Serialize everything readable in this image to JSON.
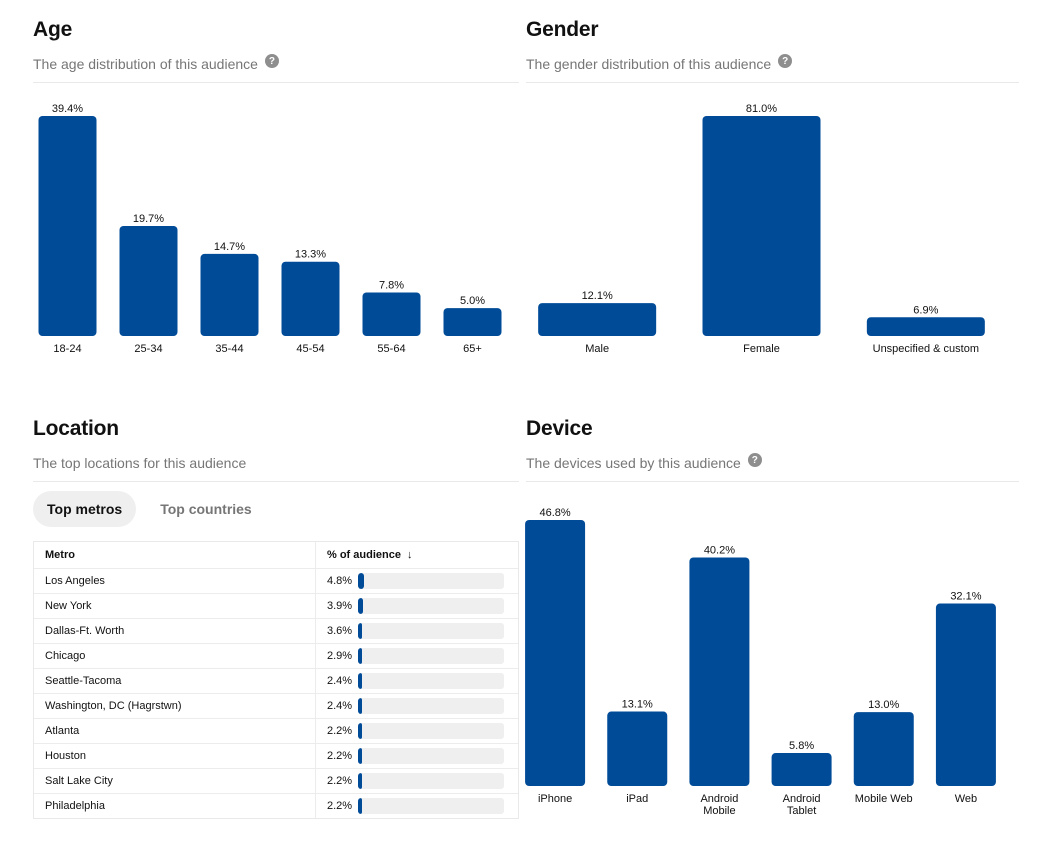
{
  "colors": {
    "bar": "#004b98",
    "track": "#efefef",
    "muted": "#767676"
  },
  "age": {
    "title": "Age",
    "subtitle": "The age distribution of this audience",
    "help": "?",
    "chart_data": {
      "type": "bar",
      "categories": [
        "18-24",
        "25-34",
        "35-44",
        "45-54",
        "55-64",
        "65+"
      ],
      "values": [
        39.4,
        19.7,
        14.7,
        13.3,
        7.8,
        5.0
      ],
      "labels": [
        "39.4%",
        "19.7%",
        "14.7%",
        "13.3%",
        "7.8%",
        "5.0%"
      ],
      "ylim": [
        0,
        39.4
      ]
    }
  },
  "gender": {
    "title": "Gender",
    "subtitle": "The gender distribution of this audience",
    "help": "?",
    "chart_data": {
      "type": "bar",
      "categories": [
        "Male",
        "Female",
        "Unspecified & custom"
      ],
      "values": [
        12.1,
        81.0,
        6.9
      ],
      "labels": [
        "12.1%",
        "81.0%",
        "6.9%"
      ],
      "ylim": [
        0,
        81.0
      ]
    }
  },
  "location": {
    "title": "Location",
    "subtitle": "The top locations for this audience",
    "tabs": [
      {
        "label": "Top metros",
        "active": true
      },
      {
        "label": "Top countries",
        "active": false
      }
    ],
    "table": {
      "headers": {
        "metro": "Metro",
        "pct": "% of audience",
        "sort": "↓"
      },
      "rows": [
        {
          "metro": "Los Angeles",
          "pct": "4.8%",
          "value": 4.8
        },
        {
          "metro": "New York",
          "pct": "3.9%",
          "value": 3.9
        },
        {
          "metro": "Dallas-Ft. Worth",
          "pct": "3.6%",
          "value": 3.6
        },
        {
          "metro": "Chicago",
          "pct": "2.9%",
          "value": 2.9
        },
        {
          "metro": "Seattle-Tacoma",
          "pct": "2.4%",
          "value": 2.4
        },
        {
          "metro": "Washington, DC (Hagrstwn)",
          "pct": "2.4%",
          "value": 2.4
        },
        {
          "metro": "Atlanta",
          "pct": "2.2%",
          "value": 2.2
        },
        {
          "metro": "Houston",
          "pct": "2.2%",
          "value": 2.2
        },
        {
          "metro": "Salt Lake City",
          "pct": "2.2%",
          "value": 2.2
        },
        {
          "metro": "Philadelphia",
          "pct": "2.2%",
          "value": 2.2
        }
      ]
    }
  },
  "device": {
    "title": "Device",
    "subtitle": "The devices used by this audience",
    "help": "?",
    "chart_data": {
      "type": "bar",
      "categories": [
        "iPhone",
        "iPad",
        "Android\nMobile",
        "Android\nTablet",
        "Mobile Web",
        "Web"
      ],
      "values": [
        46.8,
        13.1,
        40.2,
        5.8,
        13.0,
        32.1
      ],
      "labels": [
        "46.8%",
        "13.1%",
        "40.2%",
        "5.8%",
        "13.0%",
        "32.1%"
      ],
      "ylim": [
        0,
        46.8
      ]
    }
  }
}
